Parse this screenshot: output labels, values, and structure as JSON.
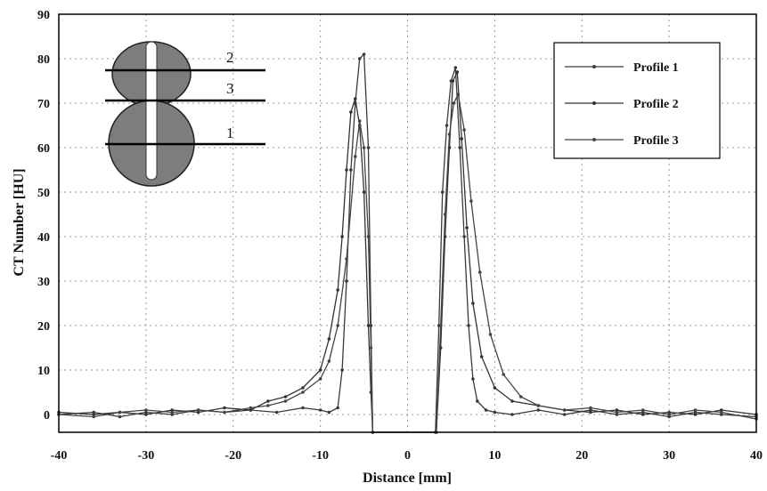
{
  "chart_data": {
    "type": "line",
    "xlabel": "Distance [mm]",
    "ylabel": "CT Number [HU]",
    "xlim": [
      -40,
      40
    ],
    "ylim": [
      -4,
      90
    ],
    "xticks": [
      -40,
      -30,
      -20,
      -10,
      0,
      10,
      20,
      30,
      40
    ],
    "yticks": [
      0,
      10,
      20,
      30,
      40,
      50,
      60,
      70,
      80,
      90
    ],
    "grid": true,
    "legend_position": "top-right",
    "series": [
      {
        "name": "Profile 1",
        "color": "#3a3a3a",
        "x": [
          -40,
          -36,
          -33,
          -30,
          -27,
          -24,
          -21,
          -18,
          -15,
          -12,
          -10,
          -9,
          -8,
          -7.5,
          -7,
          -6.5,
          -6,
          -5.5,
          -5,
          -4.5,
          -4.2,
          -4,
          3.2,
          3.6,
          4,
          4.5,
          5,
          5.5,
          6,
          6.5,
          7,
          7.5,
          8,
          9,
          10,
          12,
          15,
          18,
          21,
          24,
          27,
          30,
          33,
          36,
          40
        ],
        "y": [
          0,
          0.5,
          -0.5,
          0.5,
          0,
          1,
          0.5,
          1,
          0.5,
          1.5,
          1,
          0.5,
          1.5,
          10,
          30,
          55,
          70,
          80,
          81,
          60,
          20,
          -4,
          -4,
          20,
          50,
          65,
          75,
          78,
          60,
          40,
          20,
          8,
          3,
          1,
          0.5,
          0,
          1,
          0,
          1,
          0,
          0.5,
          -0.5,
          0.5,
          0,
          -0.5
        ]
      },
      {
        "name": "Profile 2",
        "color": "#333333",
        "x": [
          -40,
          -36,
          -33,
          -30,
          -27,
          -24,
          -21,
          -18,
          -16,
          -14,
          -12,
          -10,
          -9,
          -8,
          -7.5,
          -7,
          -6.5,
          -6,
          -5.5,
          -5,
          -4.5,
          -4.2,
          -4,
          3.3,
          3.8,
          4.3,
          4.8,
          5.2,
          5.7,
          6.2,
          6.8,
          7.5,
          8.5,
          10,
          12,
          15,
          18,
          21,
          24,
          27,
          30,
          33,
          36,
          40
        ],
        "y": [
          0.5,
          0,
          0.5,
          0,
          1,
          0.5,
          1.5,
          1,
          3,
          4,
          6,
          10,
          17,
          28,
          40,
          55,
          68,
          71,
          65,
          50,
          20,
          5,
          -4,
          -4,
          15,
          40,
          60,
          75,
          77,
          62,
          42,
          25,
          13,
          6,
          3,
          2,
          1,
          0.5,
          1,
          0,
          0.5,
          0,
          1,
          0
        ]
      },
      {
        "name": "Profile 3",
        "color": "#444444",
        "x": [
          -40,
          -36,
          -33,
          -30,
          -27,
          -24,
          -21,
          -18,
          -16,
          -14,
          -12,
          -10,
          -9,
          -8,
          -7,
          -6,
          -5.5,
          -5,
          -4.5,
          -4.2,
          -4,
          3.3,
          3.8,
          4.3,
          4.8,
          5.3,
          5.8,
          6.5,
          7.3,
          8.3,
          9.5,
          11,
          13,
          15,
          18,
          21,
          24,
          27,
          30,
          33,
          36,
          40
        ],
        "y": [
          0,
          -0.5,
          0.5,
          1,
          0.5,
          1,
          0.5,
          1.5,
          2,
          3,
          5,
          8,
          12,
          20,
          35,
          58,
          66,
          60,
          40,
          15,
          -4,
          -4,
          20,
          45,
          63,
          70,
          72,
          64,
          48,
          32,
          18,
          9,
          4,
          2,
          1,
          1.5,
          0.5,
          1,
          0,
          1,
          0.5,
          -1
        ]
      }
    ],
    "inset": {
      "labels": [
        "2",
        "3",
        "1"
      ]
    }
  }
}
